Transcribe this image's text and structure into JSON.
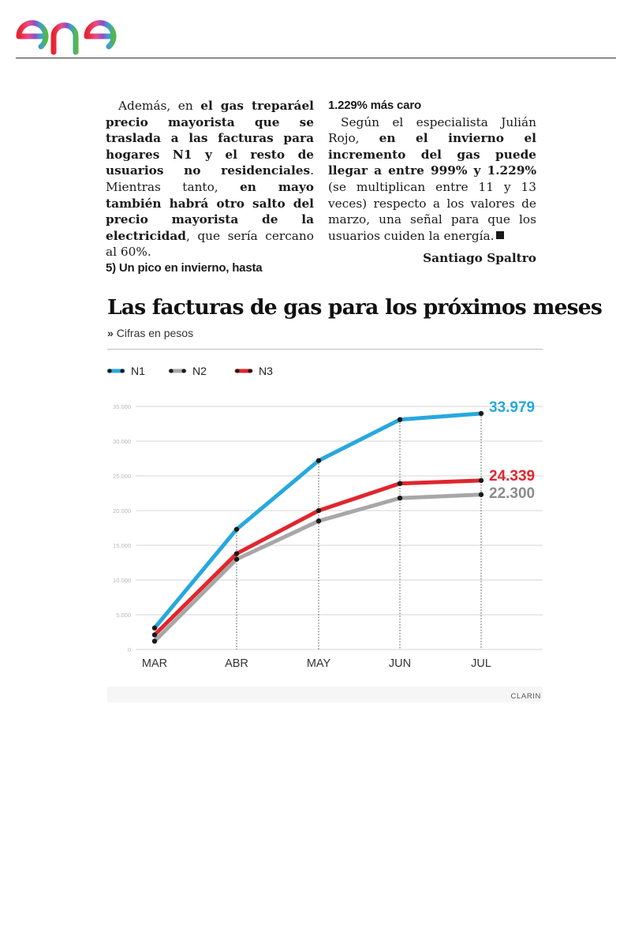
{
  "article": {
    "left": {
      "p1_a": "Además, en ",
      "p1_b": "el gas treparáel precio mayorista que se traslada a las facturas para hogares N1 y el resto de usuarios no residenciales",
      "p1_c": ". Mientras tanto, ",
      "p1_d": "en mayo también habrá otro salto del precio mayorista de la electricidad",
      "p1_e": ", que sería cercano al 60%.",
      "subhead": "5) Un pico en invierno, hasta"
    },
    "right": {
      "subhead": "1.229% más caro",
      "p2_a": "Según el especialista Julián Rojo, ",
      "p2_b": "en el invierno el incremento del gas puede llegar a entre 999% y 1.229%",
      "p2_c": " (se multiplican entre 11 y 13 veces) respecto a los valores de marzo, una señal para que los usuarios cuiden la energía.",
      "author": "Santiago Spaltro"
    }
  },
  "infographic": {
    "title": "Las facturas de gas para los próximos meses",
    "subtitle_marker": "»",
    "subtitle": "Cifras en pesos",
    "source": "CLARIN"
  },
  "chart_data": {
    "type": "line",
    "title": "Las facturas de gas para los próximos meses",
    "subtitle": "Cifras en pesos",
    "categories": [
      "MAR",
      "ABR",
      "MAY",
      "JUN",
      "JUL"
    ],
    "yticks": [
      0,
      5000,
      10000,
      15000,
      20000,
      25000,
      30000,
      35000
    ],
    "ytick_labels": [
      "0",
      "5.000",
      "10.000",
      "15.000",
      "20.000",
      "25.000",
      "30.000",
      "35.000"
    ],
    "ylim": [
      0,
      35000
    ],
    "grid": true,
    "legend_position": "top-left",
    "series": [
      {
        "name": "N1",
        "color": "#27a8de",
        "values": [
          3100,
          17300,
          27200,
          33100,
          33979
        ],
        "end_label": "33.979"
      },
      {
        "name": "N2",
        "color": "#a7a7a7",
        "values": [
          1200,
          13000,
          18500,
          21800,
          22300
        ],
        "end_label": "22.300"
      },
      {
        "name": "N3",
        "color": "#e0262e",
        "values": [
          2100,
          13800,
          20000,
          23900,
          24339
        ],
        "end_label": "24.339"
      }
    ]
  }
}
